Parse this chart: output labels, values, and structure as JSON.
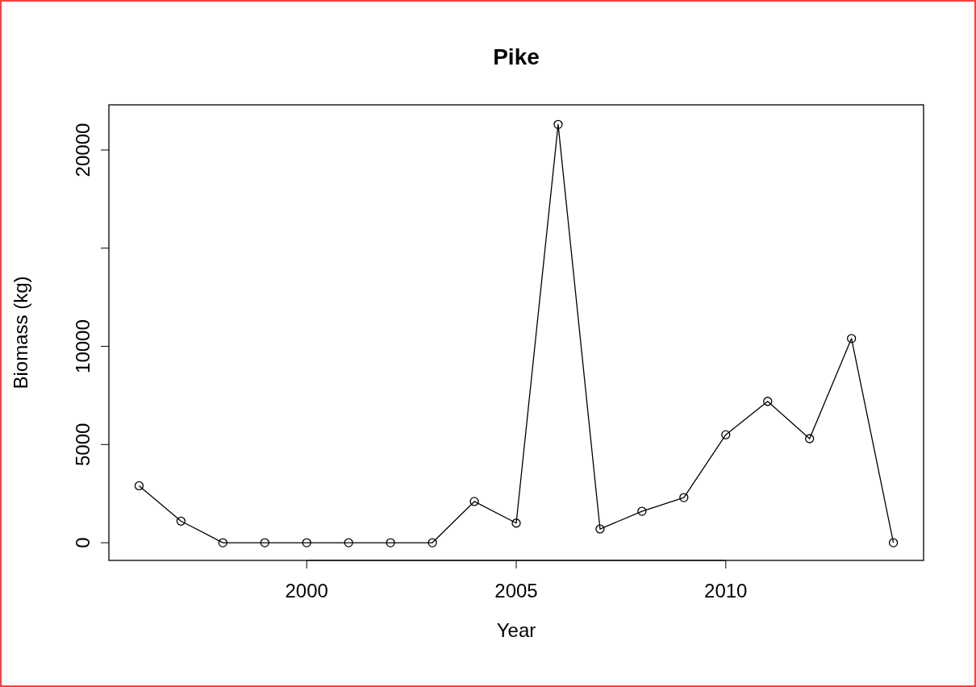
{
  "chart_data": {
    "type": "line",
    "title": "Pike",
    "xlabel": "Year",
    "ylabel": "Biomass (kg)",
    "x": [
      1996,
      1997,
      1998,
      1999,
      2000,
      2001,
      2002,
      2003,
      2004,
      2005,
      2006,
      2007,
      2008,
      2009,
      2010,
      2011,
      2012,
      2013,
      2014
    ],
    "series": [
      {
        "color": "#000000",
        "values": [
          2900,
          1100,
          0,
          0,
          0,
          0,
          0,
          0,
          2100,
          1000,
          21300,
          700,
          1600,
          2300,
          5500,
          7200,
          5300,
          10400,
          0
        ]
      }
    ],
    "xlim": [
      1995.28,
      2014.72
    ],
    "xticks": [
      2000,
      2005,
      2010
    ],
    "ylim": [
      -900,
      22300
    ],
    "yticks": [
      0,
      5000,
      10000,
      {
        "value": 15000,
        "label": null
      },
      20000
    ],
    "marker": "circle",
    "line_style": "solid",
    "grid": false
  }
}
